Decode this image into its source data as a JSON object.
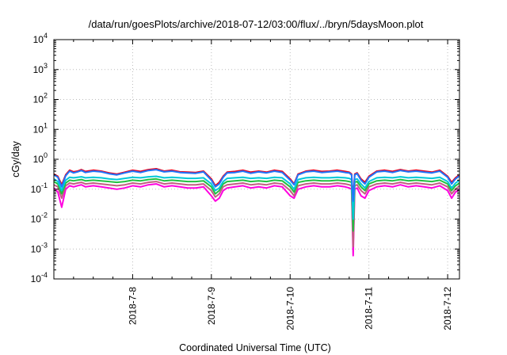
{
  "chart_data": {
    "type": "line",
    "title": "/data/run/goesPlots/archive/2018-07-12/03:00/flux/../bryn/5daysMoon.plot",
    "xlabel": "Coordinated Universal Time (UTC)",
    "ylabel": "cGy/day",
    "x_tick_labels": [
      "2018-7-8",
      "2018-7-9",
      "2018-7-10",
      "2018-7-11",
      "2018-7-12"
    ],
    "x_ticks": [
      1,
      2,
      3,
      4,
      5
    ],
    "xlim": [
      0,
      5.15
    ],
    "yscale": "log",
    "ylim": [
      0.0001,
      10000
    ],
    "y_ticks": [
      {
        "base": "10",
        "exp": "-4"
      },
      {
        "base": "10",
        "exp": "-3"
      },
      {
        "base": "10",
        "exp": "-2"
      },
      {
        "base": "10",
        "exp": "-1"
      },
      {
        "base": "10",
        "exp": "0"
      },
      {
        "base": "10",
        "exp": "1"
      },
      {
        "base": "10",
        "exp": "2"
      },
      {
        "base": "10",
        "exp": "3"
      },
      {
        "base": "10",
        "exp": "4"
      }
    ],
    "grid": true,
    "x": [
      0.0,
      0.05,
      0.1,
      0.15,
      0.2,
      0.25,
      0.3,
      0.35,
      0.4,
      0.5,
      0.6,
      0.7,
      0.8,
      0.9,
      1.0,
      1.1,
      1.2,
      1.3,
      1.4,
      1.5,
      1.6,
      1.7,
      1.8,
      1.9,
      2.0,
      2.05,
      2.1,
      2.15,
      2.2,
      2.3,
      2.4,
      2.5,
      2.6,
      2.7,
      2.8,
      2.9,
      3.0,
      3.05,
      3.1,
      3.2,
      3.3,
      3.4,
      3.5,
      3.6,
      3.7,
      3.75,
      3.78,
      3.8,
      3.82,
      3.85,
      3.9,
      3.95,
      4.0,
      4.1,
      4.2,
      4.3,
      4.4,
      4.5,
      4.6,
      4.7,
      4.8,
      4.9,
      5.0,
      5.05,
      5.1,
      5.15
    ],
    "series": [
      {
        "color": "#1f77ff",
        "values": [
          0.3,
          0.25,
          0.12,
          0.28,
          0.4,
          0.35,
          0.38,
          0.42,
          0.36,
          0.4,
          0.38,
          0.33,
          0.3,
          0.35,
          0.4,
          0.36,
          0.42,
          0.45,
          0.38,
          0.4,
          0.36,
          0.35,
          0.34,
          0.38,
          0.2,
          0.12,
          0.15,
          0.25,
          0.35,
          0.36,
          0.4,
          0.34,
          0.38,
          0.35,
          0.4,
          0.36,
          0.2,
          0.14,
          0.3,
          0.38,
          0.4,
          0.36,
          0.38,
          0.4,
          0.36,
          0.35,
          0.3,
          0.04,
          0.3,
          0.33,
          0.2,
          0.15,
          0.25,
          0.38,
          0.4,
          0.36,
          0.42,
          0.38,
          0.4,
          0.37,
          0.35,
          0.4,
          0.25,
          0.15,
          0.22,
          0.28
        ]
      },
      {
        "color": "#e8001c",
        "values": [
          0.32,
          0.27,
          0.14,
          0.3,
          0.43,
          0.38,
          0.4,
          0.45,
          0.39,
          0.43,
          0.4,
          0.35,
          0.32,
          0.37,
          0.43,
          0.39,
          0.45,
          0.48,
          0.4,
          0.43,
          0.38,
          0.37,
          0.36,
          0.4,
          0.22,
          0.13,
          0.17,
          0.27,
          0.37,
          0.39,
          0.43,
          0.37,
          0.4,
          0.37,
          0.43,
          0.39,
          0.22,
          0.15,
          0.32,
          0.4,
          0.43,
          0.39,
          0.4,
          0.43,
          0.39,
          0.37,
          0.32,
          0.045,
          0.32,
          0.35,
          0.22,
          0.17,
          0.27,
          0.4,
          0.43,
          0.39,
          0.45,
          0.4,
          0.43,
          0.4,
          0.37,
          0.43,
          0.27,
          0.17,
          0.24,
          0.3
        ]
      },
      {
        "color": "#00c8d8",
        "values": [
          0.22,
          0.18,
          0.09,
          0.2,
          0.25,
          0.24,
          0.25,
          0.26,
          0.24,
          0.25,
          0.24,
          0.22,
          0.21,
          0.23,
          0.25,
          0.24,
          0.26,
          0.27,
          0.24,
          0.25,
          0.24,
          0.23,
          0.23,
          0.24,
          0.15,
          0.09,
          0.11,
          0.18,
          0.23,
          0.24,
          0.25,
          0.23,
          0.24,
          0.23,
          0.25,
          0.24,
          0.15,
          0.1,
          0.21,
          0.24,
          0.25,
          0.24,
          0.24,
          0.25,
          0.24,
          0.23,
          0.21,
          0.01,
          0.21,
          0.22,
          0.15,
          0.11,
          0.18,
          0.24,
          0.25,
          0.24,
          0.26,
          0.24,
          0.25,
          0.24,
          0.23,
          0.25,
          0.18,
          0.11,
          0.16,
          0.2
        ]
      },
      {
        "color": "#20c040",
        "values": [
          0.18,
          0.15,
          0.07,
          0.16,
          0.2,
          0.19,
          0.2,
          0.21,
          0.19,
          0.2,
          0.19,
          0.18,
          0.17,
          0.18,
          0.2,
          0.19,
          0.21,
          0.22,
          0.19,
          0.2,
          0.19,
          0.18,
          0.18,
          0.19,
          0.12,
          0.07,
          0.09,
          0.15,
          0.18,
          0.19,
          0.2,
          0.18,
          0.19,
          0.18,
          0.2,
          0.19,
          0.12,
          0.08,
          0.17,
          0.19,
          0.2,
          0.19,
          0.19,
          0.2,
          0.19,
          0.18,
          0.17,
          0.004,
          0.17,
          0.18,
          0.12,
          0.09,
          0.15,
          0.19,
          0.2,
          0.19,
          0.21,
          0.19,
          0.2,
          0.19,
          0.18,
          0.2,
          0.15,
          0.09,
          0.13,
          0.16
        ]
      },
      {
        "color": "#c06080",
        "values": [
          0.14,
          0.12,
          0.05,
          0.13,
          0.16,
          0.15,
          0.16,
          0.17,
          0.15,
          0.16,
          0.15,
          0.14,
          0.13,
          0.14,
          0.16,
          0.15,
          0.17,
          0.18,
          0.15,
          0.16,
          0.15,
          0.14,
          0.14,
          0.15,
          0.09,
          0.055,
          0.07,
          0.12,
          0.14,
          0.15,
          0.16,
          0.14,
          0.15,
          0.14,
          0.16,
          0.15,
          0.09,
          0.06,
          0.13,
          0.15,
          0.16,
          0.15,
          0.15,
          0.16,
          0.15,
          0.14,
          0.13,
          0.0012,
          0.13,
          0.14,
          0.09,
          0.07,
          0.12,
          0.15,
          0.16,
          0.15,
          0.17,
          0.15,
          0.16,
          0.15,
          0.14,
          0.16,
          0.12,
          0.07,
          0.1,
          0.13
        ]
      },
      {
        "color": "#ff00e0",
        "values": [
          0.11,
          0.08,
          0.025,
          0.1,
          0.13,
          0.12,
          0.13,
          0.14,
          0.12,
          0.13,
          0.12,
          0.11,
          0.1,
          0.11,
          0.13,
          0.12,
          0.14,
          0.15,
          0.12,
          0.13,
          0.12,
          0.11,
          0.11,
          0.12,
          0.06,
          0.04,
          0.05,
          0.09,
          0.11,
          0.12,
          0.13,
          0.11,
          0.12,
          0.11,
          0.13,
          0.12,
          0.06,
          0.05,
          0.1,
          0.12,
          0.13,
          0.12,
          0.12,
          0.13,
          0.12,
          0.11,
          0.1,
          0.0006,
          0.1,
          0.11,
          0.06,
          0.05,
          0.09,
          0.12,
          0.13,
          0.12,
          0.14,
          0.12,
          0.13,
          0.12,
          0.11,
          0.13,
          0.09,
          0.05,
          0.08,
          0.1
        ]
      }
    ]
  }
}
